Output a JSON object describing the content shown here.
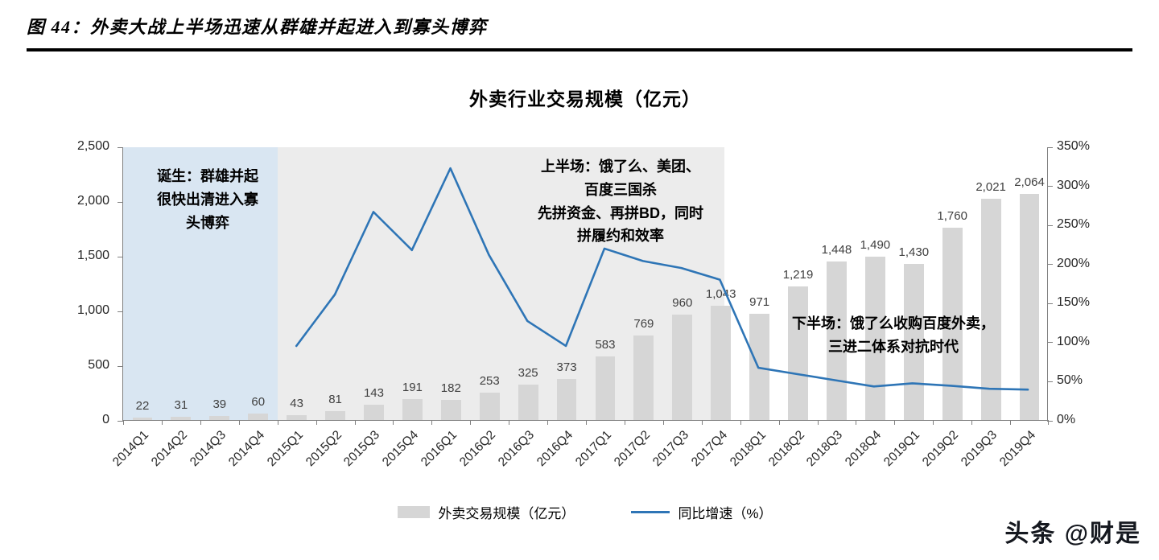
{
  "header": {
    "title": "图 44：外卖大战上半场迅速从群雄并起进入到寡头博弈"
  },
  "watermark": {
    "text": "头条 @财是"
  },
  "chart_data": {
    "type": "bar",
    "title": "外卖行业交易规模（亿元）",
    "categories": [
      "2014Q1",
      "2014Q2",
      "2014Q3",
      "2014Q4",
      "2015Q1",
      "2015Q2",
      "2015Q3",
      "2015Q4",
      "2016Q1",
      "2016Q2",
      "2016Q3",
      "2016Q4",
      "2017Q1",
      "2017Q2",
      "2017Q3",
      "2017Q4",
      "2018Q1",
      "2018Q2",
      "2018Q3",
      "2018Q4",
      "2019Q1",
      "2019Q2",
      "2019Q3",
      "2019Q4"
    ],
    "series": [
      {
        "name": "外卖交易规模（亿元）",
        "type": "bar",
        "axis": "left",
        "color": "#d6d6d6",
        "values": [
          22,
          31,
          39,
          60,
          43,
          81,
          143,
          191,
          182,
          253,
          325,
          373,
          583,
          769,
          960,
          1043,
          971,
          1219,
          1448,
          1490,
          1430,
          1760,
          2021,
          2064
        ]
      },
      {
        "name": "同比增速（%）",
        "type": "line",
        "axis": "right",
        "color": "#2e75b6",
        "values": [
          null,
          null,
          null,
          null,
          95,
          161,
          267,
          218,
          323,
          212,
          127,
          95,
          220,
          204,
          195,
          180,
          67,
          59,
          51,
          43,
          47,
          44,
          40,
          39
        ]
      }
    ],
    "left_axis": {
      "min": 0,
      "max": 2500,
      "ticks": [
        "0",
        "500",
        "1,000",
        "1,500",
        "2,000",
        "2,500"
      ]
    },
    "right_axis": {
      "min": 0,
      "max": 350,
      "ticks": [
        "0%",
        "50%",
        "100%",
        "150%",
        "200%",
        "250%",
        "300%",
        "350%"
      ]
    },
    "annotations": [
      {
        "lines": [
          "诞生：群雄并起",
          "很快出清进入寡",
          "头博弈"
        ],
        "region": {
          "start": 0,
          "end": 4,
          "fill": "#d9e6f2"
        }
      },
      {
        "lines": [
          "上半场：饿了么、美团、",
          "百度三国杀",
          "先拼资金、再拼BD，同时",
          "拼履约和效率"
        ],
        "region": {
          "start": 4,
          "end": 15.6,
          "fill": "#ececec"
        }
      },
      {
        "lines": [
          "下半场：饿了么收购百度外卖，",
          "三进二体系对抗时代"
        ],
        "region": {
          "start": 15.6,
          "end": 24,
          "fill": "none"
        }
      }
    ],
    "legend": [
      {
        "label": "外卖交易规模（亿元）",
        "swatch": "bar",
        "color": "#d6d6d6"
      },
      {
        "label": "同比增速（%）",
        "swatch": "line",
        "color": "#2e75b6"
      }
    ]
  }
}
